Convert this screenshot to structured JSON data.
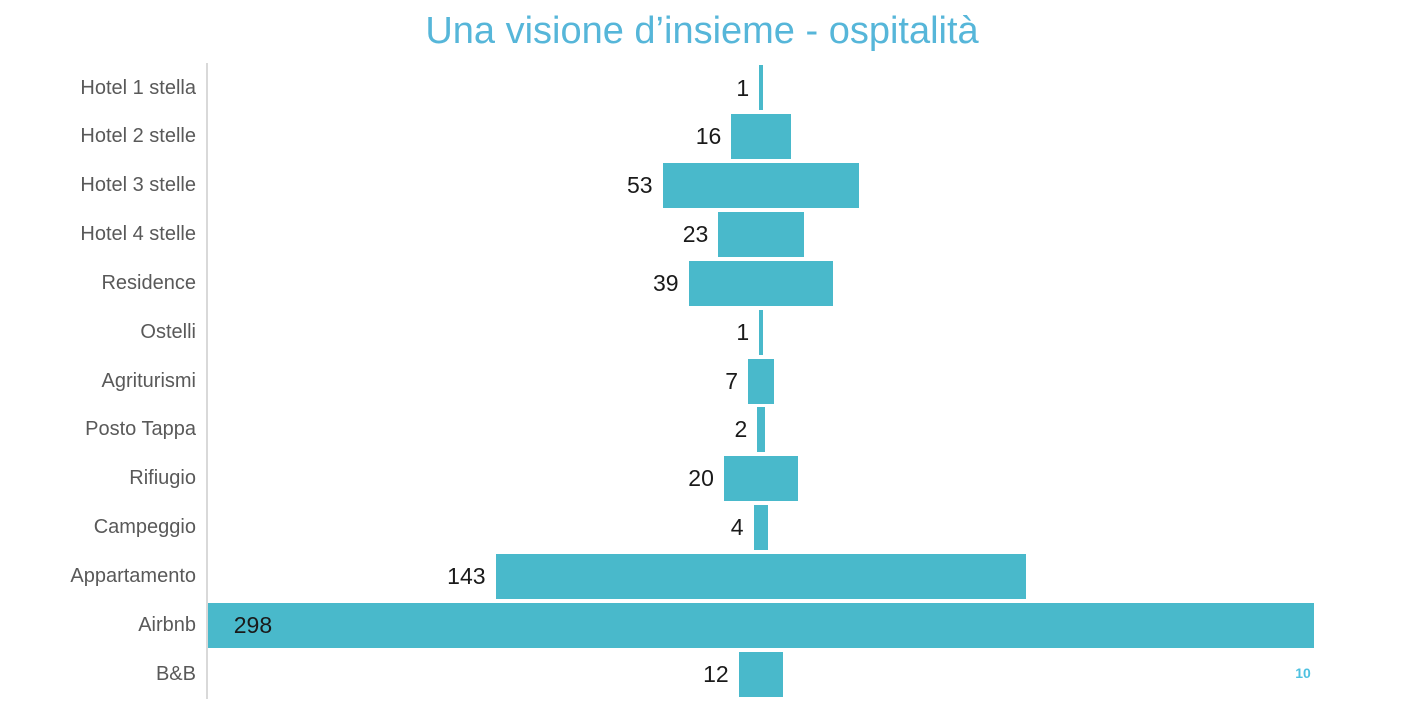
{
  "slide": {
    "page_number": "10",
    "background": "#ffffff"
  },
  "chart_data": {
    "type": "bar",
    "variant": "horizontal-centered",
    "title": "Una visione d’insieme - ospitalità",
    "categories": [
      "Hotel 1 stella",
      "Hotel 2 stelle",
      "Hotel 3 stelle",
      "Hotel 4 stelle",
      "Residence",
      "Ostelli",
      "Agriturismi",
      "Posto Tappa",
      "Rifiugio",
      "Campeggio",
      "Appartamento",
      "Airbnb",
      "B&B"
    ],
    "values": [
      1,
      16,
      53,
      23,
      39,
      1,
      7,
      2,
      20,
      4,
      143,
      298,
      12
    ],
    "value_label_position": "outside-left, inside-left when bar reaches axis",
    "xlim": [
      -149,
      149
    ],
    "grid": false,
    "legend": false,
    "y_axis_line": true,
    "colors": {
      "bar": "#49b9cb",
      "title": "#56b6d9",
      "category_label": "#595959",
      "value_label": "#1a1a1a",
      "axis_line": "#d9d9d9",
      "page_number": "#4ec1e0"
    }
  }
}
